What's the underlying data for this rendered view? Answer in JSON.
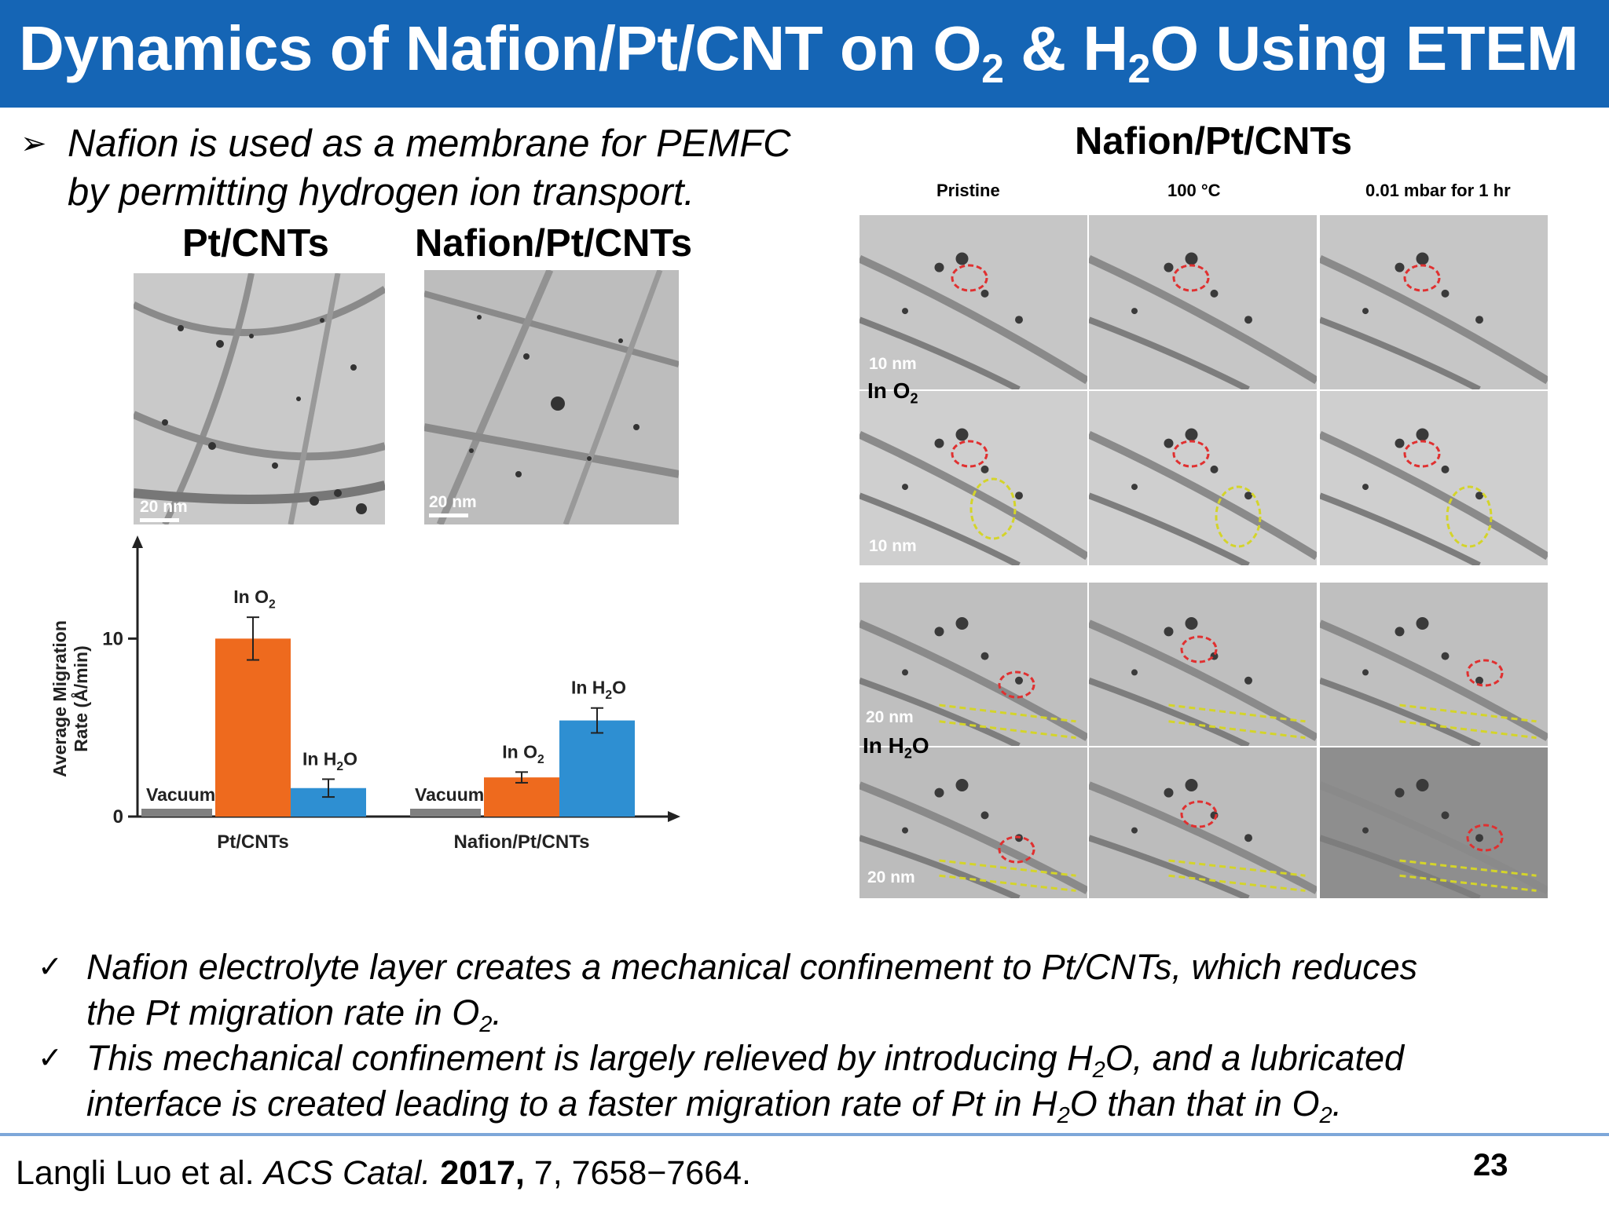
{
  "slide": {
    "title": {
      "part1": "Dynamics of Nafion/Pt/CNT on O",
      "sub1": "2",
      "part2": " & H",
      "sub2": "2",
      "part3": "O Using ETEM"
    },
    "intro": {
      "bullet_icon": "arrow-bullet-icon",
      "line1": "Nafion is used as a membrane for PEMFC",
      "line2": "by permitting hydrogen ion transport."
    },
    "left_panel": {
      "label_ptcnts": "Pt/CNTs",
      "label_nafion": "Nafion/Pt/CNTs",
      "scale_left": "20 nm",
      "scale_right": "20 nm"
    },
    "right_panel": {
      "title": "Nafion/Pt/CNTs",
      "columns": [
        "Pristine",
        "100 °C",
        "0.01 mbar for 1 hr"
      ],
      "condition_o2": "In O",
      "condition_o2_sub": "2",
      "condition_h2o_pre": "In H",
      "condition_h2o_sub": "2",
      "condition_h2o_post": "O",
      "scales": [
        "10 nm",
        "10 nm",
        "20 nm",
        "20 nm"
      ]
    },
    "bullets": [
      {
        "icon": "checkmark-icon",
        "line1": "Nafion electrolyte layer creates a mechanical confinement to Pt/CNTs, which reduces",
        "line2_pre": "the Pt migration rate in O",
        "line2_sub": "2",
        "line2_post": "."
      },
      {
        "icon": "checkmark-icon",
        "line1_pre": "This mechanical confinement is largely relieved by introducing H",
        "line1_sub": "2",
        "line1_post": "O, and a lubricated",
        "line2_pre": "interface is created leading to a faster migration rate of Pt in H",
        "line2_sub": "2",
        "line2_mid": "O than that in O",
        "line2_sub2": "2",
        "line2_post": "."
      }
    ],
    "footer": {
      "authors": "Langli Luo et al. ",
      "journal": "ACS Catal.",
      "year": " 2017,",
      "pages": " 7, 7658−7664."
    },
    "page_number": "23",
    "colors": {
      "title_bar": "#1565b5",
      "o2_bar": "#ee6a1e",
      "h2o_bar": "#2e8fd2",
      "vacuum_bar": "#808080",
      "rule": "#7da7d9"
    }
  },
  "chart_data": {
    "type": "bar",
    "ylabel": "Average Migration Rate (Å/min)",
    "ylim": [
      0,
      15
    ],
    "yticks": [
      0,
      10
    ],
    "groups": [
      {
        "name": "Pt/CNTs",
        "bars": [
          {
            "name": "Vacuum",
            "value": 0.0,
            "error": 0
          },
          {
            "name": "In O2",
            "value": 10.0,
            "error": 1.2
          },
          {
            "name": "In H2O",
            "value": 1.6,
            "error": 0.5
          }
        ]
      },
      {
        "name": "Nafion/Pt/CNTs",
        "bars": [
          {
            "name": "Vacuum",
            "value": 0.0,
            "error": 0
          },
          {
            "name": "In O2",
            "value": 2.2,
            "error": 0.3
          },
          {
            "name": "In H2O",
            "value": 5.4,
            "error": 0.7
          }
        ]
      }
    ]
  }
}
